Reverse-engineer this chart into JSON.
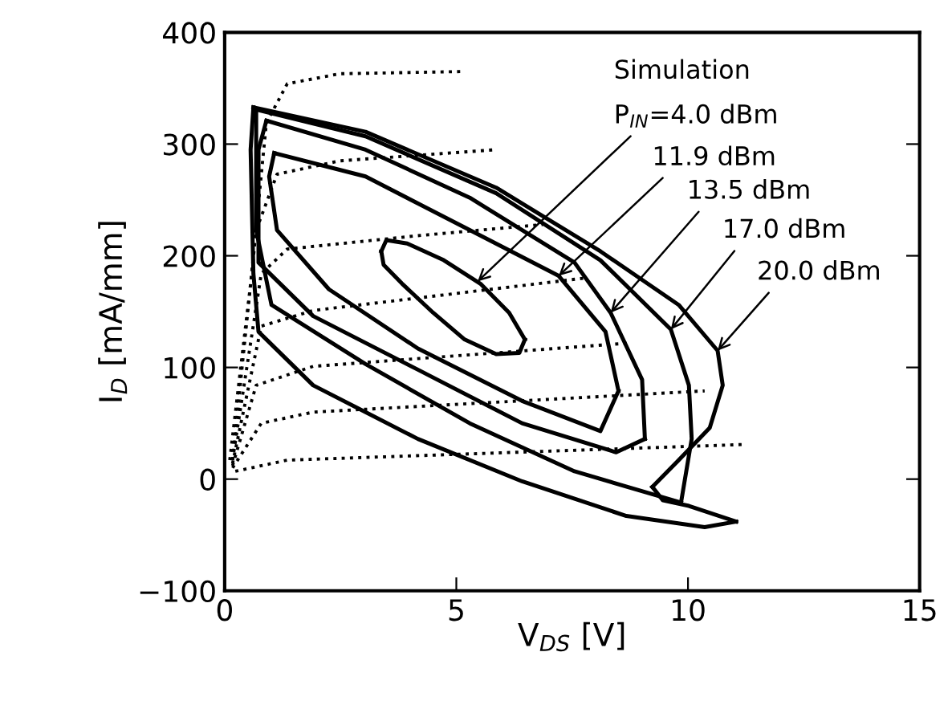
{
  "chart_data": {
    "type": "line",
    "xlabel": "V$_{DS}$ [V]",
    "ylabel": "I$_{D}$ [mA/mm]",
    "xlim": [
      0,
      15
    ],
    "xticks": [
      0,
      5,
      10,
      15
    ],
    "ylim": [
      -100,
      400
    ],
    "yticks": [
      {
        "value": -100,
        "label": "−100"
      },
      0,
      100,
      200,
      300,
      400
    ],
    "grid": false,
    "legend": false,
    "marker": "none",
    "series": [
      {
        "color": "#000000",
        "line_style": "solid",
        "x": [
          3.38,
          3.49,
          3.94,
          4.73,
          5.52,
          6.14,
          6.48
        ],
        "values": [
          204,
          214,
          211,
          196,
          175,
          149,
          125
        ]
      },
      {
        "color": "#000000",
        "line_style": "solid",
        "x": [
          6.48,
          6.36,
          5.86,
          5.18,
          4.5,
          3.83,
          3.43,
          3.38
        ],
        "values": [
          125,
          113,
          112,
          125,
          149,
          175,
          192,
          204
        ]
      },
      {
        "color": "#000000",
        "line_style": "solid",
        "x": [
          1.07,
          3.04,
          5.29,
          7.21,
          8.22,
          8.5
        ],
        "values": [
          292,
          271,
          223,
          182,
          132,
          79
        ]
      },
      {
        "color": "#000000",
        "line_style": "solid",
        "x": [
          8.5,
          8.11,
          6.42,
          4.17,
          2.25,
          1.13,
          0.96,
          1.07
        ],
        "values": [
          79,
          43,
          70,
          117,
          170,
          223,
          271,
          292
        ]
      },
      {
        "color": "#000000",
        "line_style": "solid",
        "x": [
          0.9,
          3.04,
          5.29,
          7.55,
          8.33,
          9.01,
          9.07
        ],
        "values": [
          321,
          295,
          252,
          194,
          149,
          89,
          36
        ]
      },
      {
        "color": "#000000",
        "line_style": "solid",
        "x": [
          9.07,
          8.45,
          6.42,
          4.17,
          1.91,
          0.73,
          0.73,
          0.9
        ],
        "values": [
          36,
          24,
          50,
          98,
          146,
          194,
          295,
          321
        ]
      },
      {
        "color": "#000000",
        "line_style": "solid",
        "x": [
          0.68,
          3.04,
          5.86,
          8.11,
          9.63,
          10.02,
          10.08,
          9.85
        ],
        "values": [
          331,
          307,
          256,
          196,
          134,
          84,
          36,
          -21
        ]
      },
      {
        "color": "#000000",
        "line_style": "solid",
        "x": [
          9.85,
          7.55,
          5.29,
          3.04,
          1.01,
          0.68,
          0.68
        ],
        "values": [
          -21,
          7,
          50,
          103,
          156,
          223,
          331
        ]
      },
      {
        "color": "#000000",
        "line_style": "solid",
        "x": [
          0.62,
          3.04,
          5.86,
          8.11,
          9.8,
          10.64,
          10.75,
          10.47,
          9.8,
          9.23
        ],
        "values": [
          333,
          311,
          261,
          204,
          156,
          115,
          84,
          46,
          17,
          -7
        ]
      },
      {
        "color": "#000000",
        "line_style": "solid",
        "x": [
          9.23,
          9.46,
          10.02,
          11.04
        ],
        "values": [
          -7,
          -19,
          -24,
          -38
        ]
      },
      {
        "color": "#000000",
        "line_style": "solid",
        "x": [
          11.04,
          10.36,
          8.67,
          6.42,
          4.17,
          1.91,
          0.73,
          0.62,
          0.56,
          0.62
        ],
        "values": [
          -38,
          -43,
          -33,
          -2,
          36,
          84,
          132,
          184,
          295,
          333
        ]
      },
      {
        "color": "#000000",
        "line_style": "dotted",
        "x": [
          0.11,
          0.56,
          0.9,
          1.35,
          2.48,
          5.18
        ],
        "values": [
          17,
          175,
          319,
          354,
          363,
          365
        ]
      },
      {
        "color": "#000000",
        "line_style": "dotted",
        "x": [
          0.17,
          0.68,
          1.13,
          2.48,
          5.86
        ],
        "values": [
          17,
          223,
          273,
          285,
          295
        ]
      },
      {
        "color": "#000000",
        "line_style": "dotted",
        "x": [
          0.17,
          0.79,
          1.35,
          4.17,
          6.87
        ],
        "values": [
          17,
          184,
          206,
          218,
          228
        ]
      },
      {
        "color": "#000000",
        "line_style": "dotted",
        "x": [
          0.17,
          0.79,
          1.91,
          7.77
        ],
        "values": [
          14,
          137,
          151,
          180
        ]
      },
      {
        "color": "#000000",
        "line_style": "dotted",
        "x": [
          0.17,
          0.68,
          1.91,
          8.78
        ],
        "values": [
          12,
          84,
          101,
          122
        ]
      },
      {
        "color": "#000000",
        "line_style": "dotted",
        "x": [
          0.17,
          0.79,
          1.91,
          10.36
        ],
        "values": [
          10,
          50,
          60,
          79
        ]
      },
      {
        "color": "#000000",
        "line_style": "dotted",
        "x": [
          0.23,
          1.35,
          11.2
        ],
        "values": [
          7,
          17,
          31
        ]
      }
    ],
    "annotations": [
      "Simulation",
      {
        "text": "P$_{IN}$=4.0 dBm",
        "x": 5.46,
        "y": 177
      },
      {
        "text": "11.9 dBm",
        "x": 7.21,
        "y": 182
      },
      {
        "text": "13.5 dBm",
        "x": 8.33,
        "y": 149
      },
      {
        "text": "17.0 dBm",
        "x": 9.63,
        "y": 134
      },
      {
        "text": "20.0 dBm",
        "x": 10.64,
        "y": 115
      }
    ]
  }
}
